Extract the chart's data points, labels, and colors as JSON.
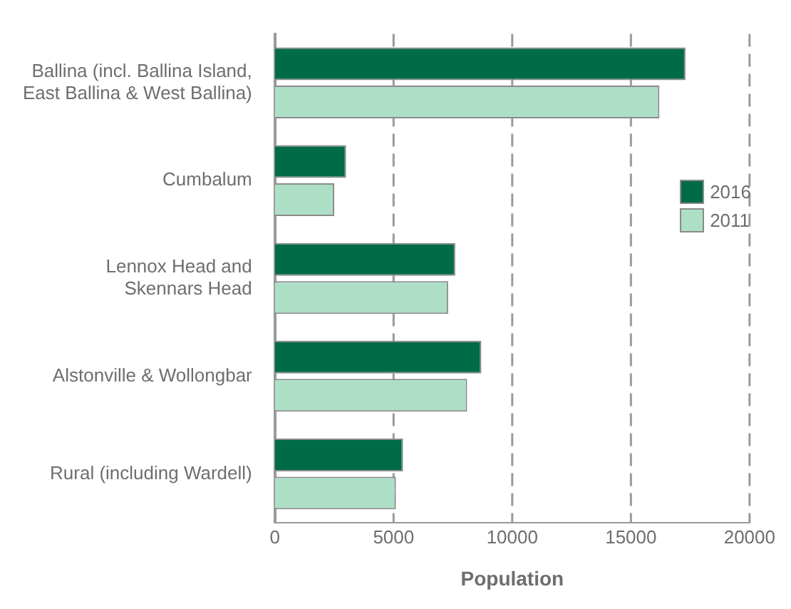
{
  "chart_data": {
    "type": "bar",
    "orientation": "horizontal",
    "xlabel": "Population",
    "categories": [
      "Ballina (incl. Ballina Island,\nEast Ballina & West Ballina)",
      "Cumbalum",
      "Lennox Head and\nSkennars Head",
      "Alstonville & Wollongbar",
      "Rural (including Wardell)"
    ],
    "series": [
      {
        "name": "2016",
        "color": "#006b47",
        "values": [
          17300,
          3000,
          7600,
          8700,
          5400
        ]
      },
      {
        "name": "2011",
        "color": "#addfc6",
        "values": [
          16200,
          2500,
          7300,
          8100,
          5100
        ]
      }
    ],
    "xlim": [
      0,
      20000
    ],
    "xticks": [
      0,
      5000,
      10000,
      15000,
      20000
    ],
    "grid": "x",
    "legend": "right"
  }
}
